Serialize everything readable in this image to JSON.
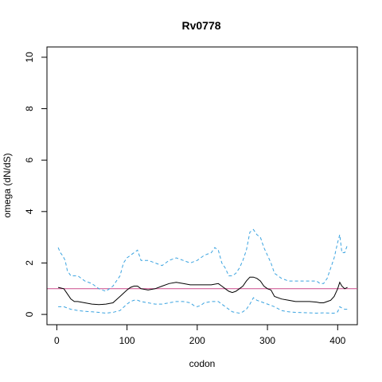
{
  "chart_data": {
    "type": "line",
    "title": "Rv0778",
    "xlabel": "codon",
    "ylabel": "omega (dN/dS)",
    "xlim": [
      -14,
      428
    ],
    "ylim": [
      -0.4,
      10.4
    ],
    "xticks": [
      0,
      100,
      200,
      300,
      400
    ],
    "yticks": [
      0,
      2,
      4,
      6,
      8,
      10
    ],
    "reference_line": {
      "y": 1,
      "color": "#cc4c8c"
    },
    "grid": false,
    "legend": "none",
    "series": [
      {
        "role": "estimate",
        "color": "#000000",
        "style": "solid",
        "x": [
          2,
          10,
          15,
          20,
          25,
          30,
          40,
          50,
          60,
          70,
          80,
          90,
          100,
          105,
          110,
          115,
          120,
          130,
          140,
          150,
          160,
          170,
          180,
          190,
          200,
          210,
          220,
          230,
          235,
          240,
          245,
          250,
          255,
          260,
          265,
          270,
          275,
          280,
          285,
          290,
          295,
          300,
          305,
          310,
          320,
          330,
          340,
          350,
          360,
          370,
          375,
          380,
          385,
          390,
          395,
          400,
          403,
          406,
          410,
          414
        ],
        "y": [
          1.05,
          1.0,
          0.8,
          0.6,
          0.5,
          0.5,
          0.45,
          0.4,
          0.38,
          0.4,
          0.45,
          0.7,
          0.95,
          1.05,
          1.1,
          1.1,
          1.0,
          0.95,
          1.0,
          1.1,
          1.2,
          1.25,
          1.2,
          1.15,
          1.15,
          1.15,
          1.15,
          1.2,
          1.1,
          1.0,
          0.9,
          0.85,
          0.9,
          1.0,
          1.1,
          1.3,
          1.45,
          1.45,
          1.4,
          1.3,
          1.1,
          1.0,
          0.95,
          0.7,
          0.6,
          0.55,
          0.5,
          0.5,
          0.5,
          0.48,
          0.45,
          0.45,
          0.5,
          0.55,
          0.7,
          1.0,
          1.25,
          1.1,
          1.0,
          1.05
        ]
      },
      {
        "role": "upper bound",
        "color": "#3aa3e0",
        "style": "dashed",
        "x": [
          2,
          5,
          8,
          10,
          12,
          15,
          20,
          30,
          40,
          50,
          60,
          70,
          80,
          90,
          95,
          100,
          105,
          110,
          115,
          120,
          130,
          140,
          150,
          160,
          170,
          180,
          190,
          200,
          210,
          220,
          225,
          230,
          235,
          240,
          245,
          250,
          255,
          260,
          265,
          270,
          275,
          280,
          285,
          290,
          295,
          300,
          305,
          310,
          320,
          330,
          340,
          350,
          360,
          370,
          375,
          380,
          385,
          390,
          395,
          400,
          403,
          406,
          410,
          414
        ],
        "y": [
          2.6,
          2.4,
          2.3,
          2.2,
          2.1,
          1.7,
          1.5,
          1.5,
          1.3,
          1.2,
          1.0,
          0.9,
          1.1,
          1.5,
          2.0,
          2.2,
          2.3,
          2.4,
          2.5,
          2.1,
          2.1,
          2.0,
          1.9,
          2.1,
          2.2,
          2.1,
          2.0,
          2.1,
          2.3,
          2.4,
          2.6,
          2.5,
          2.0,
          1.8,
          1.5,
          1.5,
          1.6,
          1.8,
          2.1,
          2.5,
          3.2,
          3.3,
          3.1,
          3.0,
          2.6,
          2.3,
          2.0,
          1.6,
          1.4,
          1.3,
          1.3,
          1.3,
          1.3,
          1.3,
          1.2,
          1.2,
          1.4,
          1.8,
          2.2,
          2.8,
          3.1,
          2.4,
          2.4,
          2.7
        ]
      },
      {
        "role": "lower bound",
        "color": "#3aa3e0",
        "style": "dashed",
        "x": [
          2,
          10,
          15,
          20,
          30,
          40,
          50,
          60,
          70,
          80,
          90,
          100,
          105,
          110,
          115,
          120,
          130,
          140,
          150,
          160,
          170,
          180,
          190,
          195,
          200,
          205,
          210,
          220,
          230,
          240,
          250,
          260,
          265,
          270,
          275,
          280,
          285,
          290,
          295,
          300,
          310,
          320,
          330,
          340,
          350,
          360,
          370,
          380,
          390,
          395,
          400,
          403,
          406,
          410,
          414
        ],
        "y": [
          0.3,
          0.3,
          0.25,
          0.2,
          0.15,
          0.12,
          0.1,
          0.08,
          0.05,
          0.08,
          0.15,
          0.4,
          0.5,
          0.55,
          0.55,
          0.5,
          0.45,
          0.4,
          0.4,
          0.45,
          0.5,
          0.5,
          0.45,
          0.35,
          0.3,
          0.35,
          0.45,
          0.5,
          0.5,
          0.3,
          0.1,
          0.05,
          0.1,
          0.2,
          0.4,
          0.65,
          0.55,
          0.5,
          0.45,
          0.4,
          0.3,
          0.15,
          0.1,
          0.08,
          0.07,
          0.06,
          0.05,
          0.06,
          0.05,
          0.05,
          0.1,
          0.3,
          0.25,
          0.2,
          0.2
        ]
      }
    ]
  }
}
